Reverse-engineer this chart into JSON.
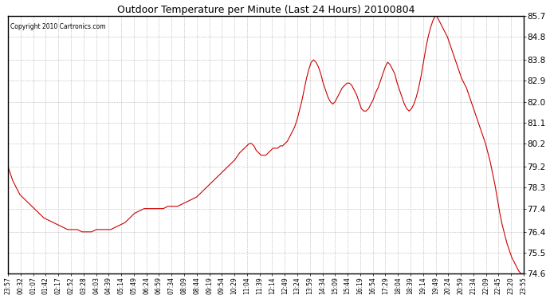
{
  "title": "Outdoor Temperature per Minute (Last 24 Hours) 20100804",
  "copyright_text": "Copyright 2010 Cartronics.com",
  "line_color": "#cc0000",
  "bg_color": "#ffffff",
  "plot_bg_color": "#ffffff",
  "grid_color": "#aaaaaa",
  "yticks": [
    74.6,
    75.5,
    76.4,
    77.4,
    78.3,
    79.2,
    80.2,
    81.1,
    82.0,
    82.9,
    83.8,
    84.8,
    85.7
  ],
  "ylim": [
    74.6,
    85.7
  ],
  "xtick_labels": [
    "23:57",
    "00:32",
    "01:07",
    "01:42",
    "02:17",
    "02:52",
    "03:28",
    "04:03",
    "04:39",
    "05:14",
    "05:49",
    "06:24",
    "06:59",
    "07:34",
    "08:09",
    "08:44",
    "09:19",
    "09:54",
    "10:29",
    "11:04",
    "11:39",
    "12:14",
    "12:49",
    "13:24",
    "13:59",
    "14:34",
    "15:09",
    "15:44",
    "16:19",
    "16:54",
    "17:29",
    "18:04",
    "18:39",
    "19:14",
    "19:49",
    "20:24",
    "20:59",
    "21:34",
    "22:09",
    "22:45",
    "23:20",
    "23:55"
  ],
  "data_points": [
    [
      0,
      79.2
    ],
    [
      10,
      78.9
    ],
    [
      20,
      78.6
    ],
    [
      35,
      78.3
    ],
    [
      50,
      78.0
    ],
    [
      70,
      77.8
    ],
    [
      90,
      77.6
    ],
    [
      110,
      77.4
    ],
    [
      130,
      77.2
    ],
    [
      150,
      77.0
    ],
    [
      170,
      76.9
    ],
    [
      190,
      76.8
    ],
    [
      210,
      76.7
    ],
    [
      230,
      76.6
    ],
    [
      250,
      76.5
    ],
    [
      270,
      76.5
    ],
    [
      290,
      76.5
    ],
    [
      310,
      76.4
    ],
    [
      330,
      76.4
    ],
    [
      350,
      76.4
    ],
    [
      370,
      76.5
    ],
    [
      390,
      76.5
    ],
    [
      410,
      76.5
    ],
    [
      430,
      76.5
    ],
    [
      450,
      76.6
    ],
    [
      470,
      76.7
    ],
    [
      490,
      76.8
    ],
    [
      510,
      77.0
    ],
    [
      530,
      77.2
    ],
    [
      550,
      77.3
    ],
    [
      570,
      77.4
    ],
    [
      590,
      77.4
    ],
    [
      610,
      77.4
    ],
    [
      630,
      77.4
    ],
    [
      650,
      77.4
    ],
    [
      670,
      77.5
    ],
    [
      690,
      77.5
    ],
    [
      710,
      77.5
    ],
    [
      730,
      77.6
    ],
    [
      750,
      77.7
    ],
    [
      770,
      77.8
    ],
    [
      790,
      77.9
    ],
    [
      810,
      78.1
    ],
    [
      830,
      78.3
    ],
    [
      850,
      78.5
    ],
    [
      870,
      78.7
    ],
    [
      890,
      78.9
    ],
    [
      910,
      79.1
    ],
    [
      930,
      79.3
    ],
    [
      950,
      79.5
    ],
    [
      970,
      79.8
    ],
    [
      990,
      80.0
    ],
    [
      1010,
      80.2
    ],
    [
      1020,
      80.2
    ],
    [
      1030,
      80.1
    ],
    [
      1040,
      79.9
    ],
    [
      1050,
      79.8
    ],
    [
      1060,
      79.7
    ],
    [
      1070,
      79.7
    ],
    [
      1080,
      79.7
    ],
    [
      1090,
      79.8
    ],
    [
      1100,
      79.9
    ],
    [
      1110,
      80.0
    ],
    [
      1120,
      80.0
    ],
    [
      1130,
      80.0
    ],
    [
      1140,
      80.1
    ],
    [
      1150,
      80.1
    ],
    [
      1160,
      80.2
    ],
    [
      1170,
      80.3
    ],
    [
      1180,
      80.5
    ],
    [
      1190,
      80.7
    ],
    [
      1200,
      80.9
    ],
    [
      1210,
      81.2
    ],
    [
      1220,
      81.6
    ],
    [
      1230,
      82.0
    ],
    [
      1240,
      82.5
    ],
    [
      1250,
      83.0
    ],
    [
      1260,
      83.4
    ],
    [
      1270,
      83.7
    ],
    [
      1280,
      83.8
    ],
    [
      1290,
      83.7
    ],
    [
      1300,
      83.5
    ],
    [
      1310,
      83.2
    ],
    [
      1320,
      82.8
    ],
    [
      1330,
      82.5
    ],
    [
      1340,
      82.2
    ],
    [
      1350,
      82.0
    ],
    [
      1360,
      81.9
    ],
    [
      1370,
      82.0
    ],
    [
      1380,
      82.2
    ],
    [
      1390,
      82.4
    ],
    [
      1400,
      82.6
    ],
    [
      1410,
      82.7
    ],
    [
      1420,
      82.8
    ],
    [
      1430,
      82.8
    ],
    [
      1440,
      82.7
    ],
    [
      1450,
      82.5
    ],
    [
      1460,
      82.3
    ],
    [
      1470,
      82.0
    ],
    [
      1480,
      81.7
    ],
    [
      1490,
      81.6
    ],
    [
      1500,
      81.6
    ],
    [
      1510,
      81.7
    ],
    [
      1520,
      81.9
    ],
    [
      1530,
      82.1
    ],
    [
      1540,
      82.4
    ],
    [
      1550,
      82.6
    ],
    [
      1560,
      82.9
    ],
    [
      1570,
      83.2
    ],
    [
      1580,
      83.5
    ],
    [
      1590,
      83.7
    ],
    [
      1600,
      83.6
    ],
    [
      1610,
      83.4
    ],
    [
      1620,
      83.2
    ],
    [
      1630,
      82.8
    ],
    [
      1640,
      82.5
    ],
    [
      1650,
      82.2
    ],
    [
      1660,
      81.9
    ],
    [
      1670,
      81.7
    ],
    [
      1680,
      81.6
    ],
    [
      1690,
      81.7
    ],
    [
      1700,
      81.9
    ],
    [
      1710,
      82.2
    ],
    [
      1720,
      82.6
    ],
    [
      1730,
      83.1
    ],
    [
      1740,
      83.7
    ],
    [
      1750,
      84.3
    ],
    [
      1760,
      84.8
    ],
    [
      1770,
      85.2
    ],
    [
      1780,
      85.5
    ],
    [
      1790,
      85.7
    ],
    [
      1795,
      85.7
    ],
    [
      1800,
      85.6
    ],
    [
      1810,
      85.4
    ],
    [
      1820,
      85.2
    ],
    [
      1830,
      85.0
    ],
    [
      1840,
      84.8
    ],
    [
      1850,
      84.5
    ],
    [
      1860,
      84.2
    ],
    [
      1870,
      83.9
    ],
    [
      1880,
      83.6
    ],
    [
      1890,
      83.3
    ],
    [
      1900,
      83.0
    ],
    [
      1910,
      82.8
    ],
    [
      1920,
      82.6
    ],
    [
      1930,
      82.3
    ],
    [
      1940,
      82.0
    ],
    [
      1950,
      81.7
    ],
    [
      1960,
      81.4
    ],
    [
      1970,
      81.1
    ],
    [
      1980,
      80.8
    ],
    [
      1990,
      80.5
    ],
    [
      2000,
      80.2
    ],
    [
      2010,
      79.8
    ],
    [
      2020,
      79.4
    ],
    [
      2030,
      78.9
    ],
    [
      2040,
      78.4
    ],
    [
      2050,
      77.8
    ],
    [
      2060,
      77.2
    ],
    [
      2070,
      76.7
    ],
    [
      2080,
      76.3
    ],
    [
      2090,
      75.9
    ],
    [
      2100,
      75.6
    ],
    [
      2110,
      75.3
    ],
    [
      2120,
      75.1
    ],
    [
      2130,
      74.9
    ],
    [
      2140,
      74.7
    ],
    [
      2150,
      74.6
    ],
    [
      2160,
      74.6
    ]
  ]
}
